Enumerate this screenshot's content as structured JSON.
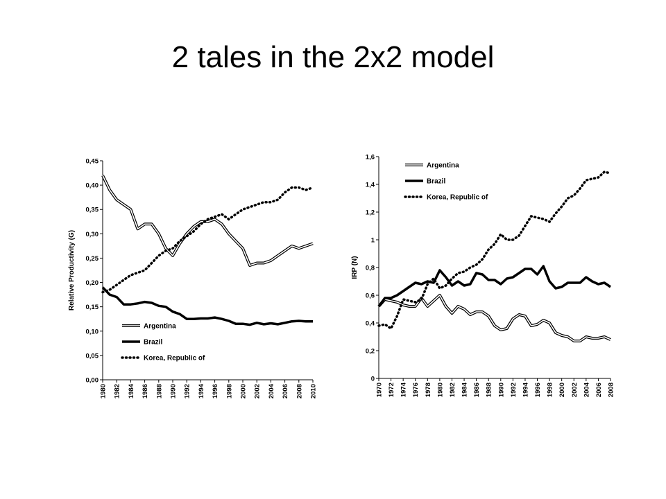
{
  "slide": {
    "title": "2 tales in the 2x2 model"
  },
  "colors": {
    "line": "#000000"
  },
  "chart_data": [
    {
      "type": "line",
      "title": "",
      "xlabel": "",
      "ylabel": "Relative Productivity (G)",
      "ylim": [
        0,
        0.45
      ],
      "ytick_labels": [
        "0,00",
        "0,05",
        "0,10",
        "0,15",
        "0,20",
        "0,25",
        "0,30",
        "0,35",
        "0,40",
        "0,45"
      ],
      "xtick_labels": [
        "1980",
        "1982",
        "1984",
        "1986",
        "1988",
        "1990",
        "1992",
        "1994",
        "1996",
        "1998",
        "2000",
        "2002",
        "2004",
        "2006",
        "2008",
        "2010"
      ],
      "legend_position": "bottom-center",
      "grid": false,
      "x": [
        1980,
        1981,
        1982,
        1983,
        1984,
        1985,
        1986,
        1987,
        1988,
        1989,
        1990,
        1991,
        1992,
        1993,
        1994,
        1995,
        1996,
        1997,
        1998,
        1999,
        2000,
        2001,
        2002,
        2003,
        2004,
        2005,
        2006,
        2007,
        2008,
        2009,
        2010
      ],
      "series": [
        {
          "name": "Argentina",
          "style": "double",
          "values": [
            0.42,
            0.39,
            0.37,
            0.36,
            0.35,
            0.31,
            0.32,
            0.32,
            0.3,
            0.27,
            0.255,
            0.28,
            0.3,
            0.315,
            0.325,
            0.325,
            0.33,
            0.32,
            0.3,
            0.285,
            0.27,
            0.235,
            0.24,
            0.24,
            0.245,
            0.255,
            0.265,
            0.275,
            0.27,
            0.275,
            0.28
          ]
        },
        {
          "name": "Brazil",
          "style": "thick",
          "values": [
            0.19,
            0.175,
            0.17,
            0.155,
            0.155,
            0.157,
            0.16,
            0.158,
            0.152,
            0.15,
            0.14,
            0.135,
            0.125,
            0.125,
            0.126,
            0.126,
            0.128,
            0.125,
            0.121,
            0.115,
            0.115,
            0.113,
            0.117,
            0.114,
            0.116,
            0.114,
            0.117,
            0.12,
            0.121,
            0.12,
            0.12
          ]
        },
        {
          "name": "Korea, Republic of",
          "style": "dotted",
          "values": [
            0.18,
            0.185,
            0.195,
            0.205,
            0.215,
            0.22,
            0.225,
            0.24,
            0.255,
            0.265,
            0.27,
            0.285,
            0.295,
            0.305,
            0.32,
            0.33,
            0.335,
            0.34,
            0.33,
            0.34,
            0.35,
            0.355,
            0.36,
            0.365,
            0.365,
            0.37,
            0.385,
            0.395,
            0.395,
            0.39,
            0.395
          ]
        }
      ]
    },
    {
      "type": "line",
      "title": "",
      "xlabel": "",
      "ylabel": "IRP (N)",
      "ylim": [
        0,
        1.6
      ],
      "ytick_labels": [
        "0",
        "0,2",
        "0,4",
        "0,6",
        "0,8",
        "1",
        "1,2",
        "1,4",
        "1,6"
      ],
      "xtick_labels": [
        "1970",
        "1972",
        "1974",
        "1976",
        "1978",
        "1980",
        "1982",
        "1984",
        "1986",
        "1988",
        "1990",
        "1992",
        "1994",
        "1996",
        "1998",
        "2000",
        "2002",
        "2004",
        "2006",
        "2008"
      ],
      "legend_position": "top-left",
      "grid": false,
      "x": [
        1970,
        1971,
        1972,
        1973,
        1974,
        1975,
        1976,
        1977,
        1978,
        1979,
        1980,
        1981,
        1982,
        1983,
        1984,
        1985,
        1986,
        1987,
        1988,
        1989,
        1990,
        1991,
        1992,
        1993,
        1994,
        1995,
        1996,
        1997,
        1998,
        1999,
        2000,
        2001,
        2002,
        2003,
        2004,
        2005,
        2006,
        2007,
        2008
      ],
      "series": [
        {
          "name": "Argentina",
          "style": "double",
          "values": [
            0.52,
            0.57,
            0.56,
            0.55,
            0.53,
            0.52,
            0.52,
            0.58,
            0.52,
            0.56,
            0.6,
            0.52,
            0.47,
            0.52,
            0.5,
            0.46,
            0.48,
            0.48,
            0.45,
            0.38,
            0.35,
            0.36,
            0.43,
            0.46,
            0.45,
            0.38,
            0.39,
            0.42,
            0.4,
            0.33,
            0.31,
            0.3,
            0.27,
            0.27,
            0.3,
            0.29,
            0.29,
            0.3,
            0.28
          ]
        },
        {
          "name": "Brazil",
          "style": "thick",
          "values": [
            0.52,
            0.58,
            0.58,
            0.6,
            0.63,
            0.66,
            0.69,
            0.68,
            0.7,
            0.69,
            0.78,
            0.73,
            0.67,
            0.7,
            0.67,
            0.68,
            0.76,
            0.75,
            0.71,
            0.71,
            0.68,
            0.72,
            0.73,
            0.76,
            0.79,
            0.79,
            0.75,
            0.81,
            0.7,
            0.65,
            0.66,
            0.69,
            0.69,
            0.69,
            0.73,
            0.7,
            0.68,
            0.69,
            0.66
          ]
        },
        {
          "name": "Korea, Republic of",
          "style": "dotted",
          "values": [
            0.38,
            0.39,
            0.36,
            0.45,
            0.57,
            0.56,
            0.55,
            0.57,
            0.68,
            0.72,
            0.65,
            0.67,
            0.72,
            0.76,
            0.77,
            0.8,
            0.82,
            0.86,
            0.93,
            0.97,
            1.04,
            1.0,
            1.0,
            1.03,
            1.1,
            1.17,
            1.16,
            1.15,
            1.13,
            1.19,
            1.24,
            1.3,
            1.32,
            1.37,
            1.43,
            1.44,
            1.45,
            1.49,
            1.48
          ]
        }
      ]
    }
  ]
}
